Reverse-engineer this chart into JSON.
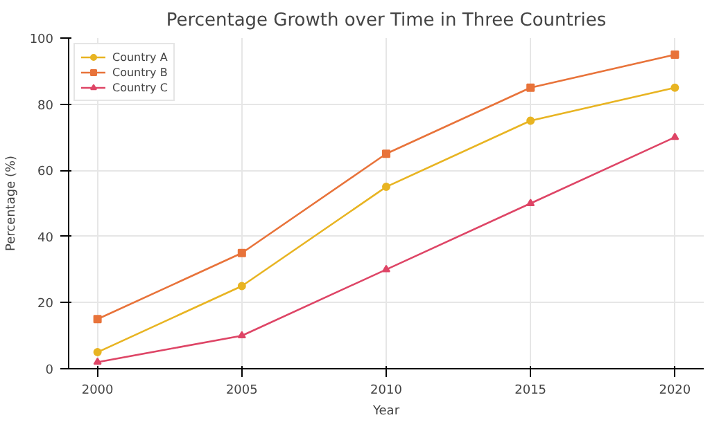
{
  "chart_data": {
    "type": "line",
    "title": "Percentage Growth over Time in Three Countries",
    "xlabel": "Year",
    "ylabel": "Percentage (%)",
    "x": [
      2000,
      2005,
      2010,
      2015,
      2020
    ],
    "series": [
      {
        "name": "Country A",
        "color": "#e8b422",
        "values": [
          5,
          25,
          55,
          75,
          85
        ],
        "marker": "circle"
      },
      {
        "name": "Country B",
        "color": "#e8733a",
        "values": [
          15,
          35,
          65,
          85,
          95
        ],
        "marker": "square"
      },
      {
        "name": "Country C",
        "color": "#de4566",
        "values": [
          2,
          10,
          30,
          50,
          70
        ],
        "marker": "triangle"
      }
    ],
    "xlim": [
      1999,
      2021
    ],
    "xticks": [
      2000,
      2005,
      2010,
      2015,
      2020
    ],
    "ylim": [
      0,
      100
    ],
    "yticks": [
      0,
      20,
      40,
      60,
      80,
      100
    ],
    "grid": true,
    "legend": "top left",
    "line_style": "solid"
  }
}
